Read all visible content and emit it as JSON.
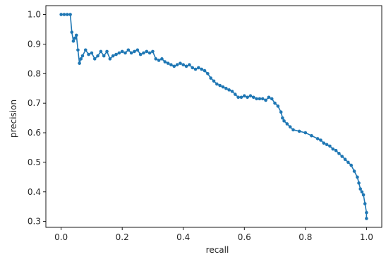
{
  "chart_data": {
    "type": "line",
    "title": "",
    "xlabel": "recall",
    "ylabel": "precision",
    "xlim": [
      -0.05,
      1.05
    ],
    "ylim": [
      0.28,
      1.03
    ],
    "grid": false,
    "x_ticks": [
      0.0,
      0.2,
      0.4,
      0.6,
      0.8,
      1.0
    ],
    "x_tick_labels": [
      "0.0",
      "0.2",
      "0.4",
      "0.6",
      "0.8",
      "1.0"
    ],
    "y_ticks": [
      0.3,
      0.4,
      0.5,
      0.6,
      0.7,
      0.8,
      0.9,
      1.0
    ],
    "y_tick_labels": [
      "0.3",
      "0.4",
      "0.5",
      "0.6",
      "0.7",
      "0.8",
      "0.9",
      "1.0"
    ],
    "series": [
      {
        "color": "#1f77b4",
        "marker": "dot",
        "points": [
          [
            0.0,
            1.0
          ],
          [
            0.01,
            1.0
          ],
          [
            0.02,
            1.0
          ],
          [
            0.03,
            1.0
          ],
          [
            0.035,
            0.94
          ],
          [
            0.04,
            0.91
          ],
          [
            0.045,
            0.92
          ],
          [
            0.05,
            0.93
          ],
          [
            0.055,
            0.88
          ],
          [
            0.06,
            0.835
          ],
          [
            0.065,
            0.85
          ],
          [
            0.07,
            0.86
          ],
          [
            0.08,
            0.88
          ],
          [
            0.09,
            0.865
          ],
          [
            0.1,
            0.87
          ],
          [
            0.11,
            0.85
          ],
          [
            0.12,
            0.86
          ],
          [
            0.13,
            0.875
          ],
          [
            0.14,
            0.86
          ],
          [
            0.15,
            0.875
          ],
          [
            0.16,
            0.85
          ],
          [
            0.17,
            0.86
          ],
          [
            0.18,
            0.865
          ],
          [
            0.19,
            0.87
          ],
          [
            0.2,
            0.875
          ],
          [
            0.21,
            0.87
          ],
          [
            0.22,
            0.88
          ],
          [
            0.23,
            0.87
          ],
          [
            0.24,
            0.875
          ],
          [
            0.25,
            0.88
          ],
          [
            0.26,
            0.865
          ],
          [
            0.27,
            0.87
          ],
          [
            0.28,
            0.875
          ],
          [
            0.29,
            0.87
          ],
          [
            0.3,
            0.875
          ],
          [
            0.31,
            0.85
          ],
          [
            0.32,
            0.845
          ],
          [
            0.33,
            0.85
          ],
          [
            0.34,
            0.84
          ],
          [
            0.35,
            0.835
          ],
          [
            0.36,
            0.83
          ],
          [
            0.37,
            0.825
          ],
          [
            0.38,
            0.83
          ],
          [
            0.39,
            0.835
          ],
          [
            0.4,
            0.83
          ],
          [
            0.41,
            0.825
          ],
          [
            0.42,
            0.83
          ],
          [
            0.43,
            0.82
          ],
          [
            0.44,
            0.815
          ],
          [
            0.45,
            0.82
          ],
          [
            0.46,
            0.815
          ],
          [
            0.47,
            0.81
          ],
          [
            0.48,
            0.8
          ],
          [
            0.49,
            0.785
          ],
          [
            0.5,
            0.775
          ],
          [
            0.51,
            0.765
          ],
          [
            0.52,
            0.76
          ],
          [
            0.53,
            0.755
          ],
          [
            0.54,
            0.75
          ],
          [
            0.55,
            0.745
          ],
          [
            0.56,
            0.74
          ],
          [
            0.57,
            0.73
          ],
          [
            0.58,
            0.72
          ],
          [
            0.59,
            0.72
          ],
          [
            0.6,
            0.725
          ],
          [
            0.61,
            0.72
          ],
          [
            0.62,
            0.725
          ],
          [
            0.63,
            0.72
          ],
          [
            0.64,
            0.715
          ],
          [
            0.65,
            0.715
          ],
          [
            0.66,
            0.715
          ],
          [
            0.67,
            0.71
          ],
          [
            0.68,
            0.72
          ],
          [
            0.69,
            0.715
          ],
          [
            0.7,
            0.7
          ],
          [
            0.71,
            0.69
          ],
          [
            0.72,
            0.67
          ],
          [
            0.725,
            0.65
          ],
          [
            0.73,
            0.64
          ],
          [
            0.74,
            0.63
          ],
          [
            0.75,
            0.62
          ],
          [
            0.76,
            0.61
          ],
          [
            0.78,
            0.605
          ],
          [
            0.8,
            0.6
          ],
          [
            0.82,
            0.59
          ],
          [
            0.84,
            0.58
          ],
          [
            0.85,
            0.575
          ],
          [
            0.86,
            0.565
          ],
          [
            0.87,
            0.56
          ],
          [
            0.88,
            0.555
          ],
          [
            0.89,
            0.545
          ],
          [
            0.9,
            0.54
          ],
          [
            0.91,
            0.53
          ],
          [
            0.92,
            0.52
          ],
          [
            0.93,
            0.51
          ],
          [
            0.94,
            0.5
          ],
          [
            0.95,
            0.49
          ],
          [
            0.96,
            0.47
          ],
          [
            0.97,
            0.45
          ],
          [
            0.975,
            0.43
          ],
          [
            0.98,
            0.41
          ],
          [
            0.985,
            0.4
          ],
          [
            0.99,
            0.39
          ],
          [
            0.995,
            0.36
          ],
          [
            1.0,
            0.33
          ],
          [
            1.0,
            0.31
          ]
        ]
      }
    ]
  }
}
